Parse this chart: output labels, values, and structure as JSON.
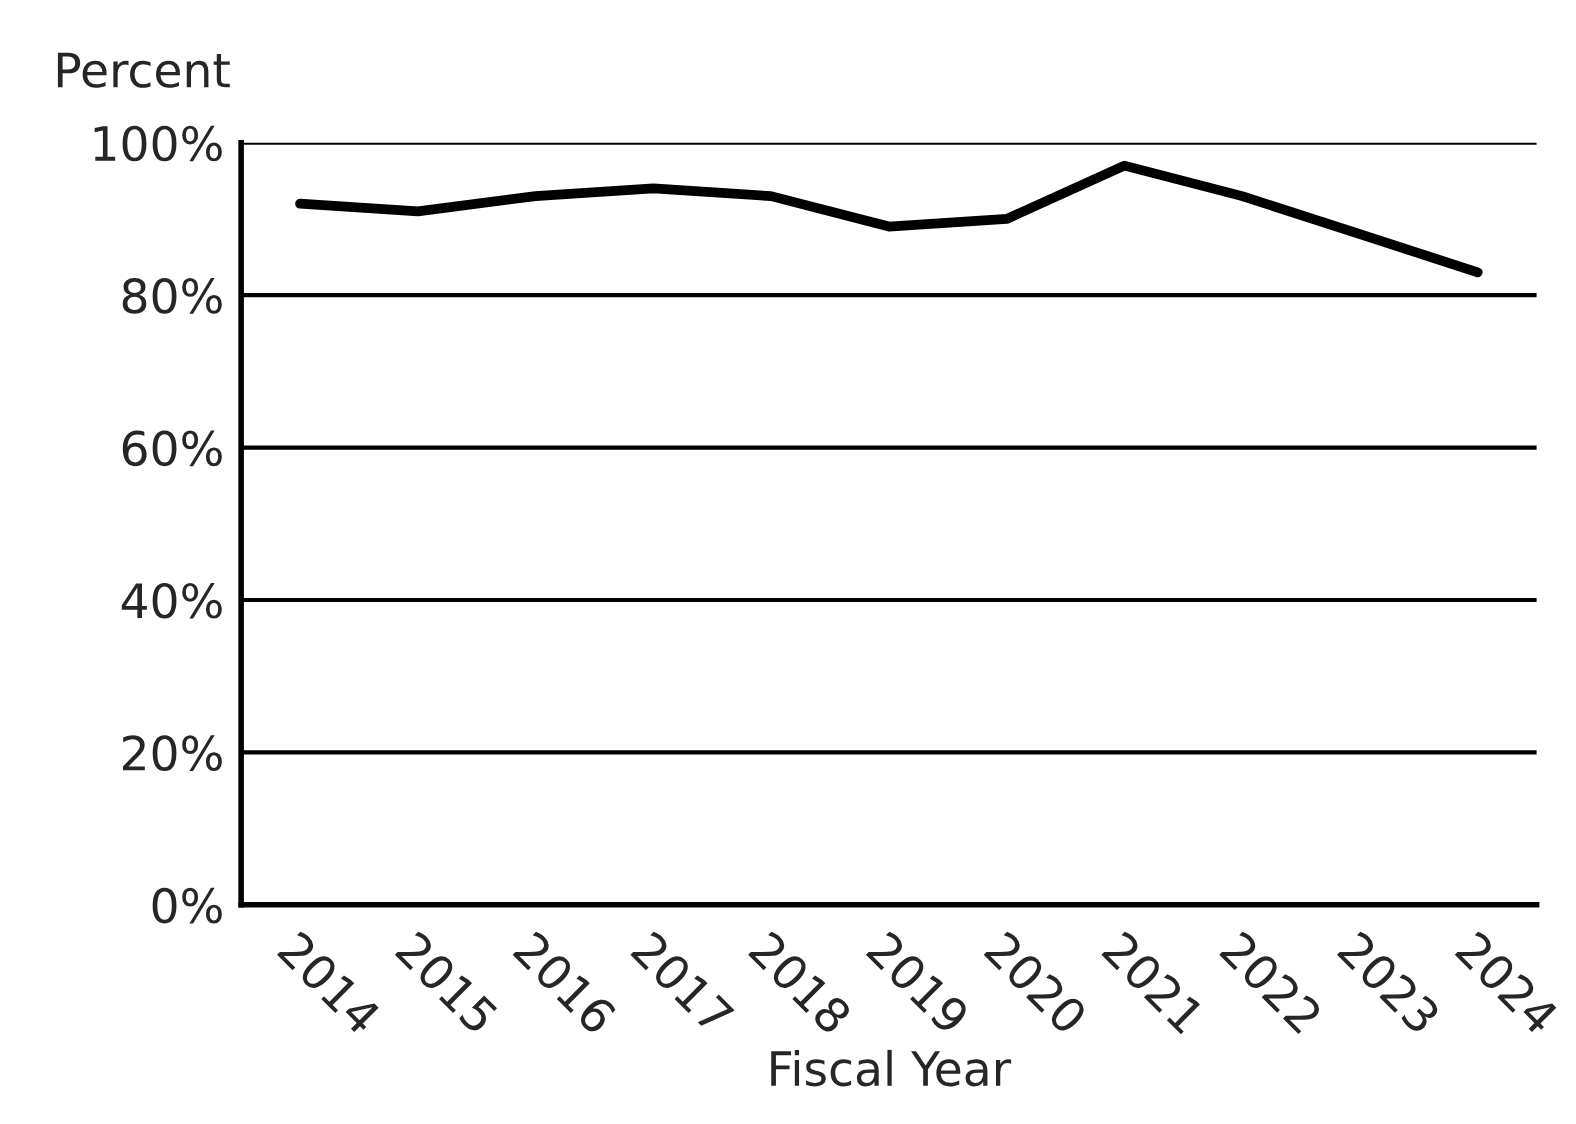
{
  "chart_data": {
    "type": "line",
    "xlabel": "Fiscal Year",
    "ylabel": "Percent",
    "categories": [
      "2014",
      "2015",
      "2016",
      "2017",
      "2018",
      "2019",
      "2020",
      "2021",
      "2022",
      "2023",
      "2024"
    ],
    "series": [
      {
        "color": "#000000",
        "values": [
          92,
          91,
          93,
          94,
          93,
          89,
          90,
          97,
          93,
          88,
          83
        ]
      }
    ],
    "ylim": [
      0,
      100
    ],
    "yticks": [
      {
        "value": 0,
        "label": "0%"
      },
      {
        "value": 20,
        "label": "20%"
      },
      {
        "value": 40,
        "label": "40%"
      },
      {
        "value": 60,
        "label": "60%"
      },
      {
        "value": 80,
        "label": "80%"
      },
      {
        "value": 100,
        "label": "100%"
      }
    ],
    "grid": "y",
    "legend": false,
    "marker": "none",
    "line_style": "solid"
  }
}
